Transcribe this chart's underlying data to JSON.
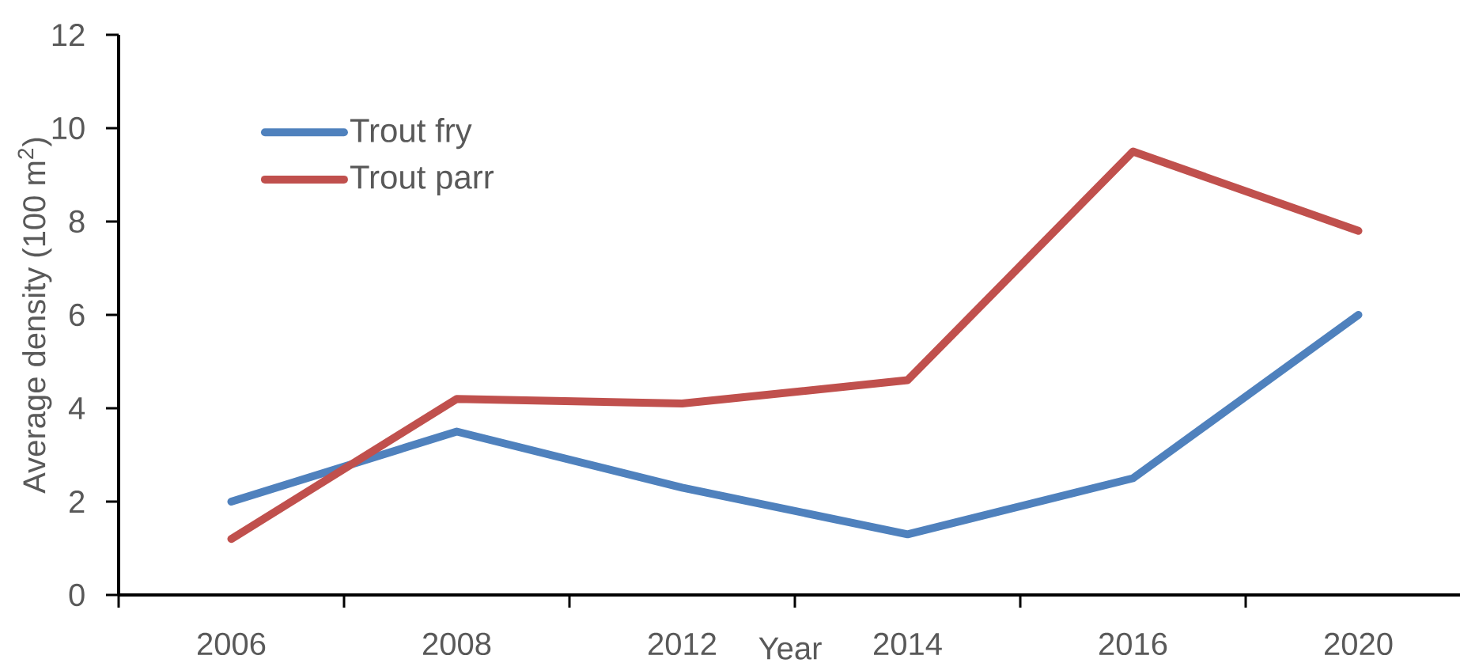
{
  "chart_data": {
    "type": "line",
    "xlabel": "Year",
    "ylabel": "Average density (100 m$^{2}$)",
    "categories": [
      "2006",
      "2008",
      "2012",
      "2014",
      "2016",
      "2020"
    ],
    "series": [
      {
        "name": "Trout fry",
        "color": "#4f81bd",
        "values": [
          2.0,
          3.5,
          2.3,
          1.3,
          2.5,
          6.0
        ]
      },
      {
        "name": "Trout parr",
        "color": "#c0504d",
        "values": [
          1.2,
          4.2,
          4.1,
          4.6,
          9.5,
          7.8
        ]
      }
    ],
    "ylim": [
      0,
      12
    ],
    "yticks": [
      0,
      2,
      4,
      6,
      8,
      10,
      12
    ],
    "grid": false,
    "legend": "top left",
    "line_style": "solid",
    "marker": "none"
  }
}
